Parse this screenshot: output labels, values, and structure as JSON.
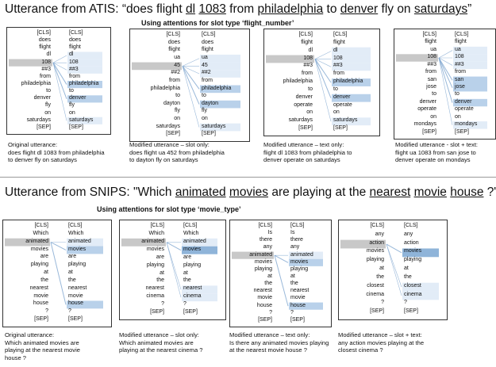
{
  "section1": {
    "title_prefix": "Utterance from ATIS: “does flight ",
    "title_u1": "dl",
    "title_mid1": " ",
    "title_u2": "1083",
    "title_mid2": " from ",
    "title_u3": "philadelphia",
    "title_mid3": " to ",
    "title_u4": "denver",
    "title_mid4": " fly on ",
    "title_u5": "saturdays",
    "title_suffix": "”",
    "subtitle": "Using attentions for slot type ‘flight_number’",
    "panels": [
      {
        "tokens_left": [
          "[CLS]",
          "does",
          "flight",
          "dl",
          "108",
          "##3",
          "from",
          "philadelphia",
          "to",
          "denver",
          "fly",
          "on",
          "saturdays",
          "[SEP]"
        ],
        "tokens_right": [
          "[CLS]",
          "does",
          "flight",
          "dl",
          "108",
          "##3",
          "from",
          "philadelphia",
          "to",
          "denver",
          "fly",
          "on",
          "saturdays",
          "[SEP]"
        ],
        "caption": [
          "Original utterance:",
          "does flight dl 1083 from philadelphia",
          "to denver fly on saturdays"
        ]
      },
      {
        "tokens_left": [
          "[CLS]",
          "does",
          "flight",
          "ua",
          "45",
          "##2",
          "from",
          "philadelphia",
          "to",
          "dayton",
          "fly",
          "on",
          "saturdays",
          "[SEP]"
        ],
        "tokens_right": [
          "[CLS]",
          "does",
          "flight",
          "ua",
          "45",
          "##2",
          "from",
          "philadelphia",
          "to",
          "dayton",
          "fly",
          "on",
          "saturdays",
          "[SEP]"
        ],
        "caption": [
          "Modified utterance – slot only:",
          "does flight ua 452 from philadelphia",
          "to dayton fly on saturdays"
        ]
      },
      {
        "tokens_left": [
          "[CLS]",
          "flight",
          "dl",
          "108",
          "##3",
          "from",
          "philadelphia",
          "to",
          "denver",
          "operate",
          "on",
          "saturdays",
          "[SEP]"
        ],
        "tokens_right": [
          "[CLS]",
          "flight",
          "dl",
          "108",
          "##3",
          "from",
          "philadelphia",
          "to",
          "denver",
          "operate",
          "on",
          "saturdays",
          "[SEP]"
        ],
        "caption": [
          "Modified utterance – text only:",
          "flight dl 1083 from philadelphia to",
          "denver operate on saturdays"
        ]
      },
      {
        "tokens_left": [
          "[CLS]",
          "flight",
          "ua",
          "108",
          "##3",
          "from",
          "san",
          "jose",
          "to",
          "denver",
          "operate",
          "on",
          "mondays",
          "[SEP]"
        ],
        "tokens_right": [
          "[CLS]",
          "flight",
          "ua",
          "108",
          "##3",
          "from",
          "san",
          "jose",
          "to",
          "denver",
          "operate",
          "on",
          "mondays",
          "[SEP]"
        ],
        "caption": [
          "Modified utterance - slot + text:",
          "flight ua 1083 from san jose to",
          "denver operate on mondays"
        ]
      }
    ]
  },
  "section2": {
    "title_prefix": "Utterance from SNIPS: \"Which ",
    "title_u1": "animated",
    "title_mid1": " ",
    "title_u2": "movies",
    "title_mid2": " are playing at the ",
    "title_u3": "nearest",
    "title_mid3": " ",
    "title_u4": "movie",
    "title_mid4": " ",
    "title_u5": "house",
    "title_suffix": " ?\"",
    "subtitle": "Using attentions for slot type ‘movie_type’",
    "panels": [
      {
        "tokens_left": [
          "[CLS]",
          "Which",
          "animated",
          "movies",
          "are",
          "playing",
          "at",
          "the",
          "nearest",
          "movie",
          "house",
          "?",
          "[SEP]"
        ],
        "tokens_right": [
          "[CLS]",
          "Which",
          "animated",
          "movies",
          "are",
          "playing",
          "at",
          "the",
          "nearest",
          "movie",
          "house",
          "?",
          "[SEP]"
        ],
        "caption": [
          "Original utterance:",
          "Which animated movies are",
          "playing at the nearest movie",
          "house ?"
        ]
      },
      {
        "tokens_left": [
          "[CLS]",
          "Which",
          "animated",
          "movies",
          "are",
          "playing",
          "at",
          "the",
          "nearest",
          "cinema",
          "?",
          "[SEP]"
        ],
        "tokens_right": [
          "[CLS]",
          "Which",
          "animated",
          "movies",
          "are",
          "playing",
          "at",
          "the",
          "nearest",
          "cinema",
          "?",
          "[SEP]"
        ],
        "caption": [
          "Modified utterance – slot only:",
          "Which animated movies are",
          "playing at the nearest cinema ?"
        ]
      },
      {
        "tokens_left": [
          "[CLS]",
          "Is",
          "there",
          "any",
          "animated",
          "movies",
          "playing",
          "at",
          "the",
          "nearest",
          "movie",
          "house",
          "?",
          "[SEP]"
        ],
        "tokens_right": [
          "[CLS]",
          "Is",
          "there",
          "any",
          "animated",
          "movies",
          "playing",
          "at",
          "the",
          "nearest",
          "movie",
          "house",
          "?",
          "[SEP]"
        ],
        "caption": [
          "Modified utterance – text only:",
          "Is there any animated movies playing",
          "at the nearest movie house ?"
        ]
      },
      {
        "tokens_left": [
          "[CLS]",
          "any",
          "action",
          "movies",
          "playing",
          "at",
          "the",
          "closest",
          "cinema",
          "?",
          "[SEP]"
        ],
        "tokens_right": [
          "[CLS]",
          "any",
          "action",
          "movies",
          "playing",
          "at",
          "the",
          "closest",
          "cinema",
          "?",
          "[SEP]"
        ],
        "caption": [
          "Modified utterance – slot + text:",
          "any action movies playing at the",
          "closest cinema ?"
        ]
      }
    ]
  },
  "colors": {
    "query_highlight": "#c8c8c8",
    "attention_strong": "#8fb4d9",
    "attention_medium": "#b9d1ea",
    "attention_light": "#e2ecf7",
    "attention_line": "#7fa6cf",
    "panel_border": "#333333"
  }
}
